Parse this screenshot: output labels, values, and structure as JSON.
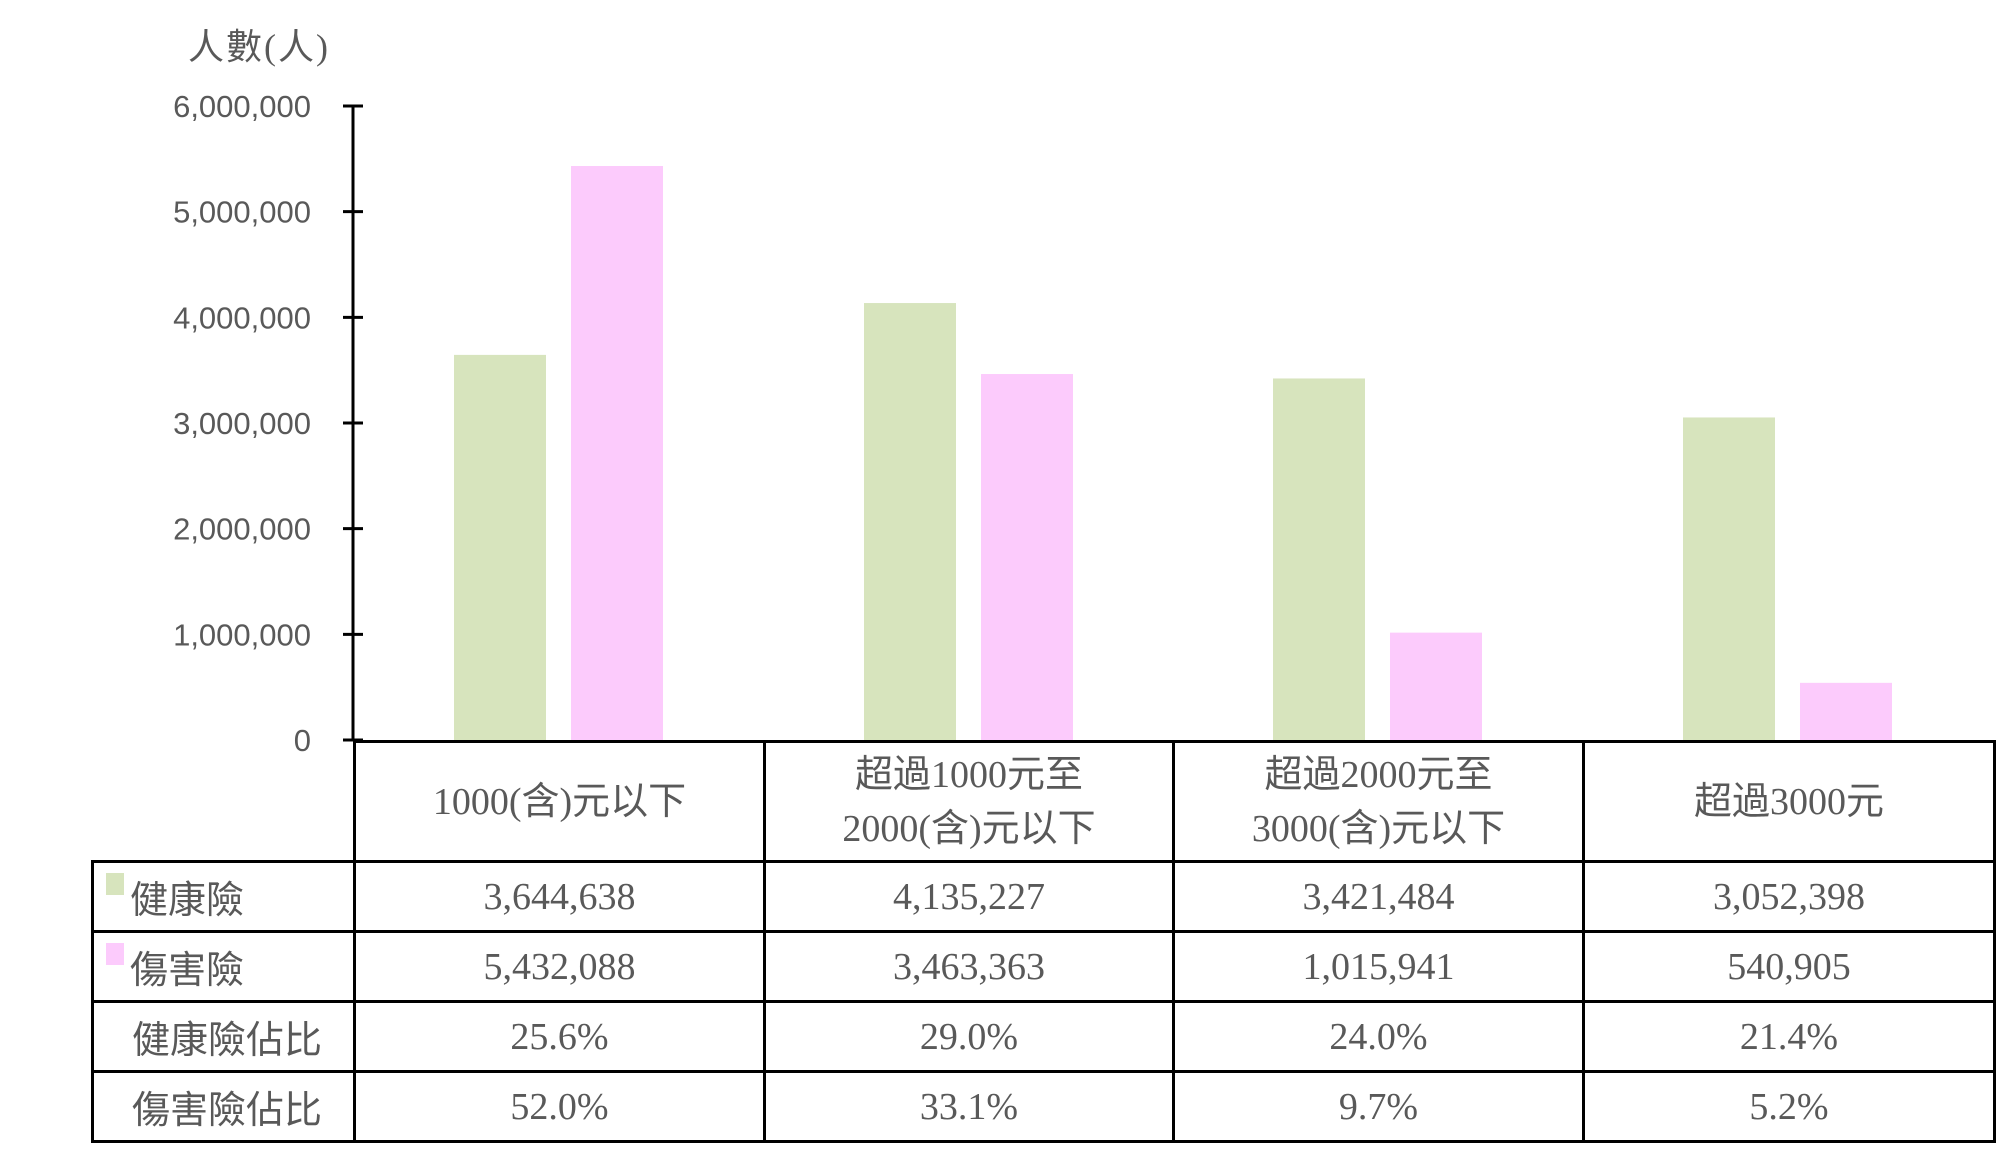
{
  "chart_data": {
    "type": "bar",
    "title": "",
    "ylabel": "人數(人)",
    "xlabel": "",
    "ylim": [
      0,
      6000000
    ],
    "yticks": [
      0,
      1000000,
      2000000,
      3000000,
      4000000,
      5000000,
      6000000
    ],
    "ytick_labels": [
      "0",
      "1,000,000",
      "2,000,000",
      "3,000,000",
      "4,000,000",
      "5,000,000",
      "6,000,000"
    ],
    "categories": [
      "1000(含)元以下",
      "超過1000元至\n2000(含)元以下",
      "超過2000元至\n3000(含)元以下",
      "超過3000元"
    ],
    "series": [
      {
        "name": "健康險",
        "color": "#d7e4bd",
        "values": [
          3644638,
          4135227,
          3421484,
          3052398
        ],
        "value_labels": [
          "3,644,638",
          "4,135,227",
          "3,421,484",
          "3,052,398"
        ]
      },
      {
        "name": "傷害險",
        "color": "#fccbfc",
        "values": [
          5432088,
          3463363,
          1015941,
          540905
        ],
        "value_labels": [
          "5,432,088",
          "3,463,363",
          "1,015,941",
          "540,905"
        ]
      }
    ],
    "extra_rows": [
      {
        "name": "健康險佔比",
        "values": [
          "25.6%",
          "29.0%",
          "24.0%",
          "21.4%"
        ]
      },
      {
        "name": "傷害險佔比",
        "values": [
          "52.0%",
          "33.1%",
          "9.7%",
          "5.2%"
        ]
      }
    ],
    "legend": "data-table",
    "grid": false
  }
}
